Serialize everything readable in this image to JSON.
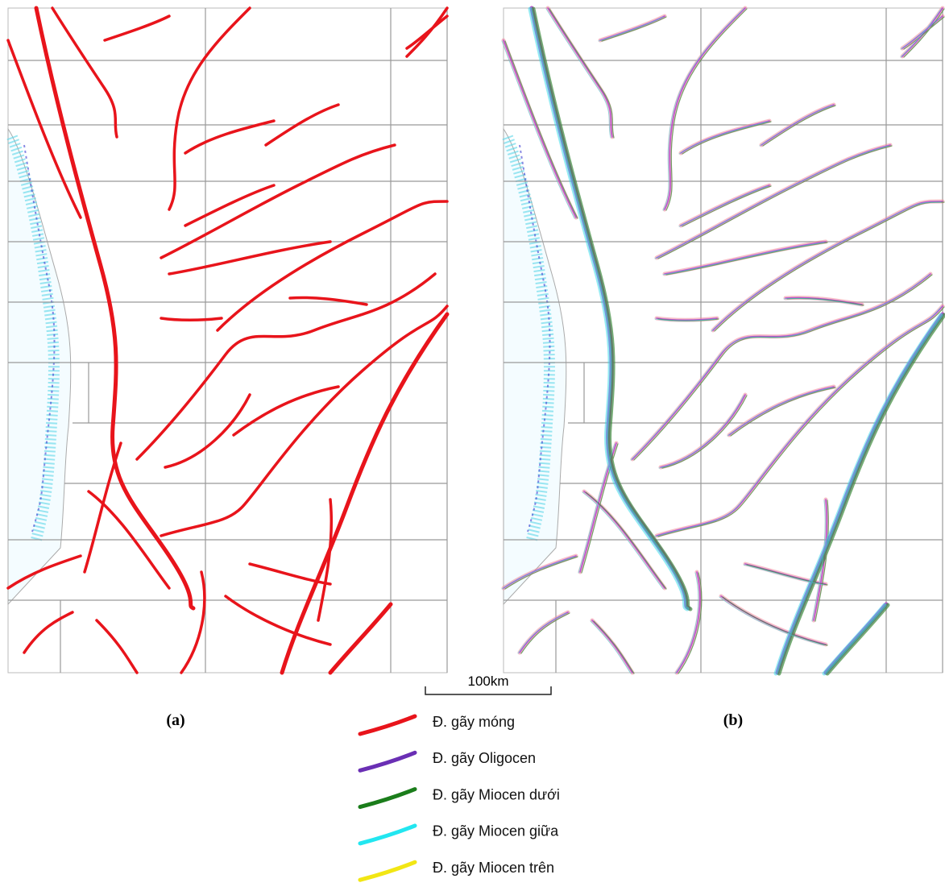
{
  "panel_labels": [
    "(a)",
    "(b)"
  ],
  "scale_bar": "100km",
  "legend": [
    {
      "label": "Đ. gãy móng",
      "color": "#e8141b"
    },
    {
      "label": "Đ. gãy Oligocen",
      "color": "#6a2fb4"
    },
    {
      "label": "Đ. gãy Miocen dưới",
      "color": "#1b7d1b"
    },
    {
      "label": "Đ. gãy Miocen giữa",
      "color": "#22e6f0"
    },
    {
      "label": "Đ. gãy Miocen trên",
      "color": "#f2e614"
    }
  ]
}
